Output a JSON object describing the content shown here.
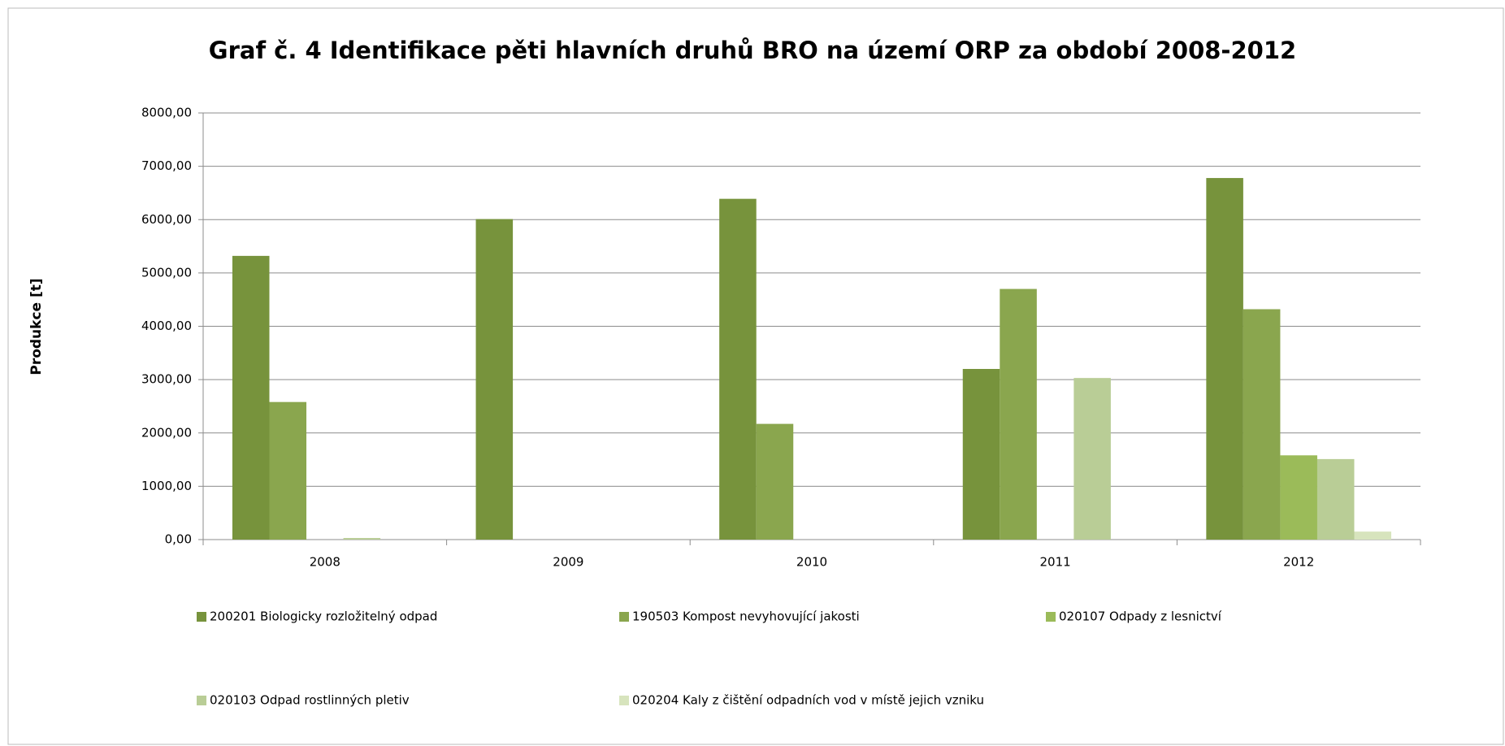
{
  "chart_data": {
    "type": "bar",
    "title": "Graf č. 4 Identifikace pěti hlavních druhů BRO na území ORP za období 2008-2012",
    "y_label": "Produkce [t]",
    "categories": [
      "2008",
      "2009",
      "2010",
      "2011",
      "2012"
    ],
    "series": [
      {
        "name": "200201 Biologicky rozložitelný odpad",
        "color": "#77933c",
        "values": [
          5320,
          6010,
          6390,
          3200,
          6780
        ]
      },
      {
        "name": "190503 Kompost nevyhovující jakosti",
        "color": "#8aa64e",
        "values": [
          2580,
          0,
          2170,
          4700,
          4320
        ]
      },
      {
        "name": "020107 Odpady z lesnictví",
        "color": "#9bbb59",
        "values": [
          0,
          0,
          0,
          0,
          1580
        ]
      },
      {
        "name": "020103 Odpad rostlinných pletiv",
        "color": "#b9cd96",
        "values": [
          30,
          0,
          0,
          3030,
          1510
        ]
      },
      {
        "name": "020204 Kaly z čištění odpadních vod v místě jejich vzniku",
        "color": "#d7e4bd",
        "values": [
          0,
          0,
          0,
          0,
          150
        ]
      }
    ],
    "ylim": [
      0,
      8000
    ],
    "yticks": [
      {
        "value": 0,
        "label": "0,00"
      },
      {
        "value": 1000,
        "label": "1000,00"
      },
      {
        "value": 2000,
        "label": "2000,00"
      },
      {
        "value": 3000,
        "label": "3000,00"
      },
      {
        "value": 4000,
        "label": "4000,00"
      },
      {
        "value": 5000,
        "label": "5000,00"
      },
      {
        "value": 6000,
        "label": "6000,00"
      },
      {
        "value": 7000,
        "label": "7000,00"
      },
      {
        "value": 8000,
        "label": "8000,00"
      }
    ],
    "grid": true,
    "legend": "bottom"
  }
}
